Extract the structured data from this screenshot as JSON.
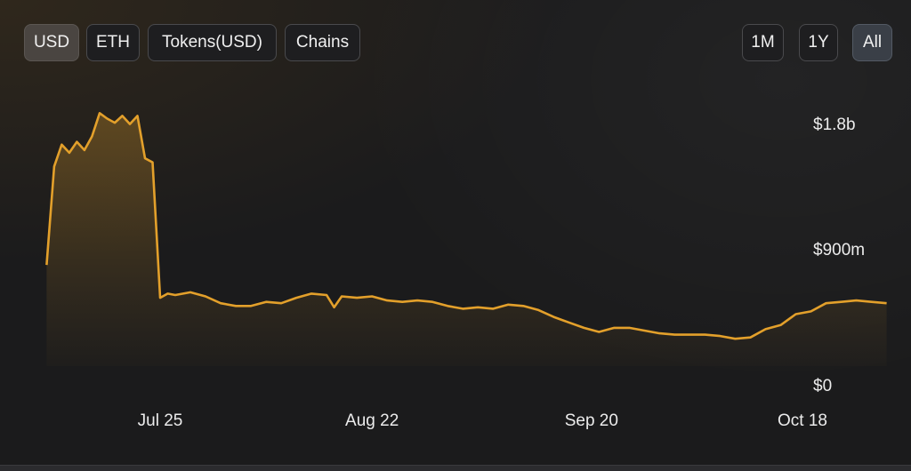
{
  "toolbar": {
    "left": [
      {
        "label": "USD",
        "active": true
      },
      {
        "label": "ETH",
        "active": false
      },
      {
        "label": "Tokens(USD)",
        "active": false
      },
      {
        "label": "Chains",
        "active": false
      }
    ],
    "right": [
      {
        "label": "1M",
        "active": false
      },
      {
        "label": "1Y",
        "active": false
      },
      {
        "label": "All",
        "active": true
      }
    ]
  },
  "colors": {
    "line": "#e3a02b",
    "background": "#1b1b1c"
  },
  "chart_data": {
    "type": "area",
    "title": "",
    "xlabel": "",
    "ylabel": "",
    "x_ticks": [
      "Jul 25",
      "Aug 22",
      "Sep 20",
      "Oct 18"
    ],
    "y_ticks": [
      "$0",
      "$900m",
      "$1.8b"
    ],
    "ylim": [
      0,
      1.8
    ],
    "y_unit": "billion USD",
    "grid": false,
    "legend": "none",
    "series": [
      {
        "points": [
          [
            "Jul 10",
            0.74
          ],
          [
            "Jul 11",
            1.46
          ],
          [
            "Jul 12",
            1.62
          ],
          [
            "Jul 13",
            1.56
          ],
          [
            "Jul 14",
            1.64
          ],
          [
            "Jul 15",
            1.58
          ],
          [
            "Jul 16",
            1.68
          ],
          [
            "Jul 17",
            1.85
          ],
          [
            "Jul 18",
            1.81
          ],
          [
            "Jul 19",
            1.78
          ],
          [
            "Jul 20",
            1.83
          ],
          [
            "Jul 21",
            1.77
          ],
          [
            "Jul 22",
            1.83
          ],
          [
            "Jul 23",
            1.52
          ],
          [
            "Jul 24",
            1.49
          ],
          [
            "Jul 25",
            0.5
          ],
          [
            "Jul 26",
            0.53
          ],
          [
            "Jul 27",
            0.52
          ],
          [
            "Jul 29",
            0.54
          ],
          [
            "Jul 31",
            0.51
          ],
          [
            "Aug 2",
            0.46
          ],
          [
            "Aug 4",
            0.44
          ],
          [
            "Aug 6",
            0.44
          ],
          [
            "Aug 8",
            0.47
          ],
          [
            "Aug 10",
            0.46
          ],
          [
            "Aug 12",
            0.5
          ],
          [
            "Aug 14",
            0.53
          ],
          [
            "Aug 16",
            0.52
          ],
          [
            "Aug 17",
            0.43
          ],
          [
            "Aug 18",
            0.51
          ],
          [
            "Aug 20",
            0.5
          ],
          [
            "Aug 22",
            0.51
          ],
          [
            "Aug 24",
            0.48
          ],
          [
            "Aug 26",
            0.47
          ],
          [
            "Aug 28",
            0.48
          ],
          [
            "Aug 30",
            0.47
          ],
          [
            "Sep 1",
            0.44
          ],
          [
            "Sep 3",
            0.42
          ],
          [
            "Sep 5",
            0.43
          ],
          [
            "Sep 7",
            0.42
          ],
          [
            "Sep 9",
            0.45
          ],
          [
            "Sep 11",
            0.44
          ],
          [
            "Sep 13",
            0.41
          ],
          [
            "Sep 15",
            0.36
          ],
          [
            "Sep 17",
            0.32
          ],
          [
            "Sep 19",
            0.28
          ],
          [
            "Sep 21",
            0.25
          ],
          [
            "Sep 23",
            0.28
          ],
          [
            "Sep 25",
            0.28
          ],
          [
            "Sep 27",
            0.26
          ],
          [
            "Sep 29",
            0.24
          ],
          [
            "Oct 1",
            0.23
          ],
          [
            "Oct 3",
            0.23
          ],
          [
            "Oct 5",
            0.23
          ],
          [
            "Oct 7",
            0.22
          ],
          [
            "Oct 9",
            0.2
          ],
          [
            "Oct 11",
            0.21
          ],
          [
            "Oct 13",
            0.27
          ],
          [
            "Oct 15",
            0.3
          ],
          [
            "Oct 17",
            0.38
          ],
          [
            "Oct 19",
            0.4
          ],
          [
            "Oct 21",
            0.46
          ],
          [
            "Oct 23",
            0.47
          ],
          [
            "Oct 25",
            0.48
          ],
          [
            "Oct 27",
            0.47
          ],
          [
            "Oct 29",
            0.46
          ]
        ]
      }
    ]
  }
}
